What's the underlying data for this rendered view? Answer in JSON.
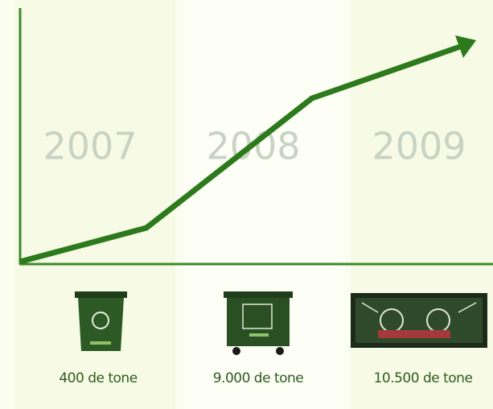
{
  "columns": [
    {
      "year": "2007",
      "amount": "400 de tone"
    },
    {
      "year": "2008",
      "amount": "9.000 de tone"
    },
    {
      "year": "2009",
      "amount": "10.500 de tone"
    }
  ]
}
